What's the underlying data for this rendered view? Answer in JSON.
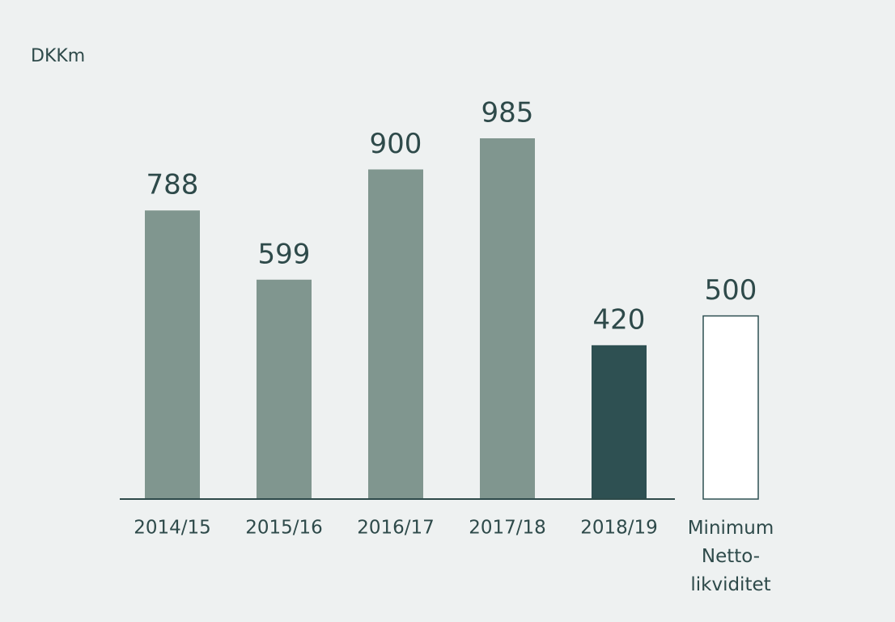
{
  "chart_data": {
    "type": "bar",
    "axis_label": "DKKm",
    "categories": [
      "2014/15",
      "2015/16",
      "2016/17",
      "2017/18",
      "2018/19",
      [
        "Minimum",
        "Netto-",
        "likviditet"
      ]
    ],
    "values": [
      788,
      599,
      900,
      985,
      420,
      500
    ],
    "colors": [
      "#80968f",
      "#80968f",
      "#80968f",
      "#80968f",
      "#2e5052",
      "#ffffff"
    ],
    "edgecolors": [
      null,
      null,
      null,
      null,
      null,
      "#2e5052"
    ],
    "ylim": [
      0,
      1000
    ]
  }
}
